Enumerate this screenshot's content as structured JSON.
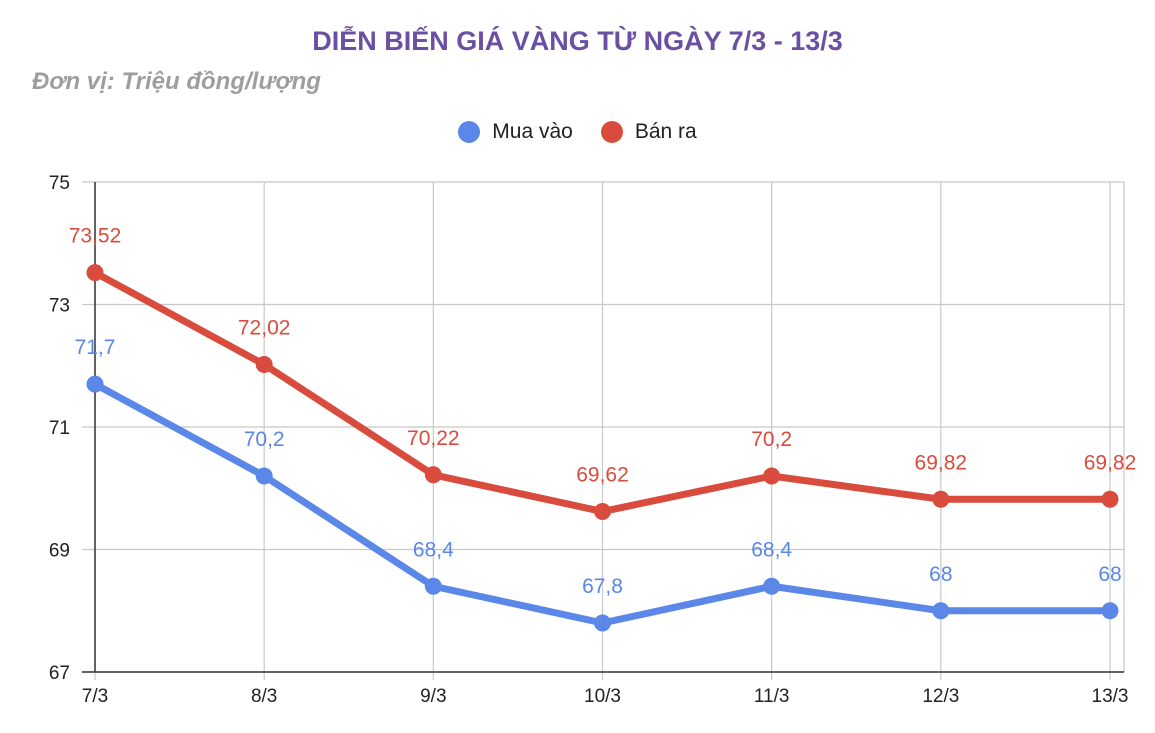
{
  "chart_data": {
    "type": "line",
    "title": "DIỄN BIẾN GIÁ VÀNG TỪ NGÀY 7/3 - 13/3",
    "subtitle": "Đơn vị: Triệu đồng/lượng",
    "categories": [
      "7/3",
      "8/3",
      "9/3",
      "10/3",
      "11/3",
      "12/3",
      "13/3"
    ],
    "series": [
      {
        "name": "Mua vào",
        "color": "#5b87e8",
        "values": [
          71.7,
          70.2,
          68.4,
          67.8,
          68.4,
          68,
          68
        ],
        "labels": [
          "71,7",
          "70,2",
          "68,4",
          "67,8",
          "68,4",
          "68",
          "68"
        ]
      },
      {
        "name": "Bán ra",
        "color": "#d94b3d",
        "values": [
          73.52,
          72.02,
          70.22,
          69.62,
          70.2,
          69.82,
          69.82
        ],
        "labels": [
          "73,52",
          "72,02",
          "70,22",
          "69,62",
          "70,2",
          "69,82",
          "69,82"
        ]
      }
    ],
    "ylim": [
      67,
      75
    ],
    "yticks": [
      67,
      69,
      71,
      73,
      75
    ],
    "grid": true,
    "legend_position": "top-center"
  }
}
